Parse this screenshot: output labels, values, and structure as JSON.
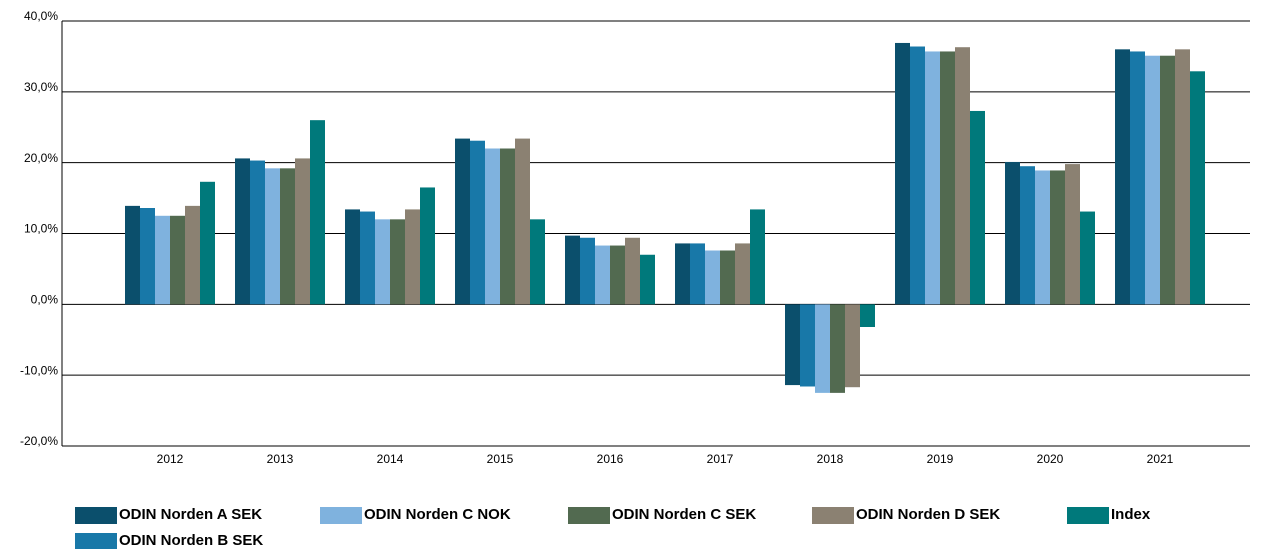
{
  "chart_data": {
    "type": "bar",
    "categories": [
      "2012",
      "2013",
      "2014",
      "2015",
      "2016",
      "2017",
      "2018",
      "2019",
      "2020",
      "2021"
    ],
    "series": [
      {
        "name": "ODIN Norden A SEK",
        "color": "#0b4f6c",
        "values": [
          13.9,
          20.6,
          13.4,
          23.4,
          9.7,
          8.6,
          -11.4,
          36.9,
          20.1,
          36.0
        ]
      },
      {
        "name": "ODIN Norden B SEK",
        "color": "#1878a8",
        "values": [
          13.6,
          20.3,
          13.1,
          23.1,
          9.4,
          8.6,
          -11.6,
          36.4,
          19.5,
          35.7
        ]
      },
      {
        "name": "ODIN Norden C NOK",
        "color": "#7fb2de",
        "values": [
          12.5,
          19.2,
          12.0,
          22.0,
          8.3,
          7.6,
          -12.5,
          35.7,
          18.9,
          35.1
        ]
      },
      {
        "name": "ODIN Norden C SEK",
        "color": "#526a50",
        "values": [
          12.5,
          19.2,
          12.0,
          22.0,
          8.3,
          7.6,
          -12.5,
          35.7,
          18.9,
          35.1
        ]
      },
      {
        "name": "ODIN Norden D SEK",
        "color": "#8b8172",
        "values": [
          13.9,
          20.6,
          13.4,
          23.4,
          9.4,
          8.6,
          -11.7,
          36.3,
          19.8,
          36.0
        ]
      },
      {
        "name": "Index",
        "color": "#00797b",
        "values": [
          17.3,
          26.0,
          16.5,
          12.0,
          7.0,
          13.4,
          -3.2,
          27.3,
          13.1,
          32.9
        ]
      }
    ],
    "ylim": [
      -20,
      40
    ],
    "yticks": [
      {
        "value": -20,
        "label": "-20,0%"
      },
      {
        "value": -10,
        "label": "-10,0%"
      },
      {
        "value": 0,
        "label": "0,0%"
      },
      {
        "value": 10,
        "label": "10,0%"
      },
      {
        "value": 20,
        "label": "20,0%"
      },
      {
        "value": 30,
        "label": "30,0%"
      },
      {
        "value": 40,
        "label": "40,0%"
      }
    ],
    "grid": true
  }
}
